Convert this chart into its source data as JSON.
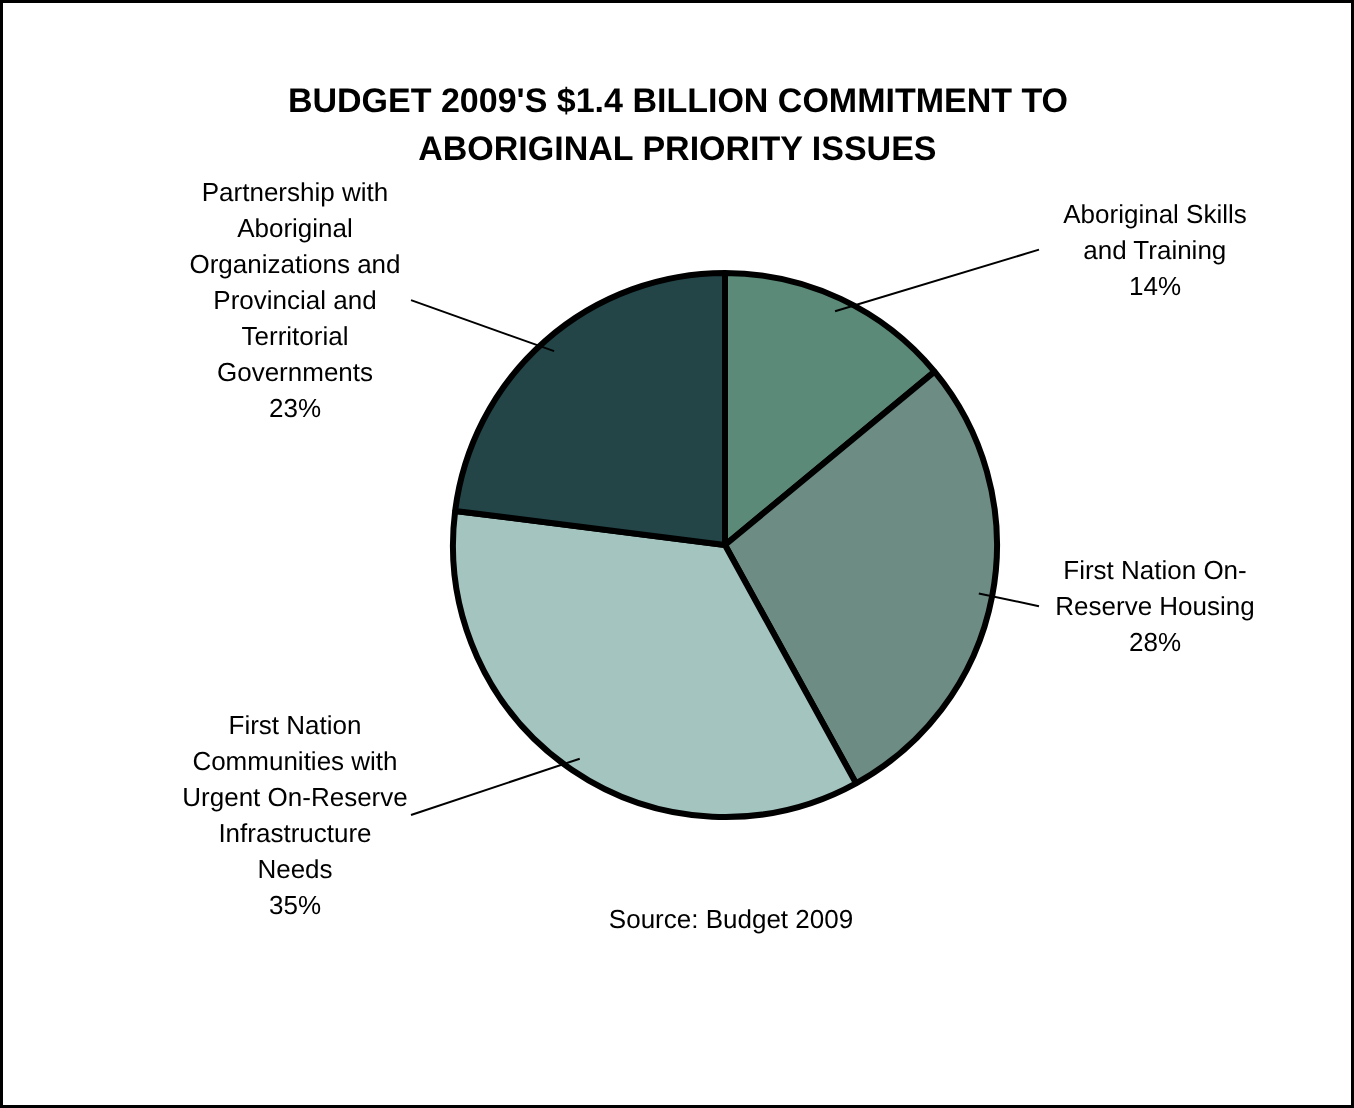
{
  "chart_data": {
    "type": "pie",
    "title": "BUDGET 2009'S $1.4 BILLION COMMITMENT TO ABORIGINAL PRIORITY ISSUES",
    "categories": [
      "Aboriginal Skills and Training",
      "First Nation On-Reserve Housing",
      "First Nation Communities with Urgent On-Reserve Infrastructure Needs",
      "Partnership with Aboriginal Organizations and Provincial and Territorial Governments"
    ],
    "values": [
      14,
      28,
      35,
      23
    ],
    "value_labels": [
      "14%",
      "28%",
      "35%",
      "23%"
    ],
    "colors": [
      "#5b8a78",
      "#6d8c84",
      "#a3c4bf",
      "#234548"
    ],
    "annotations": [
      "Source: Budget 2009"
    ]
  }
}
